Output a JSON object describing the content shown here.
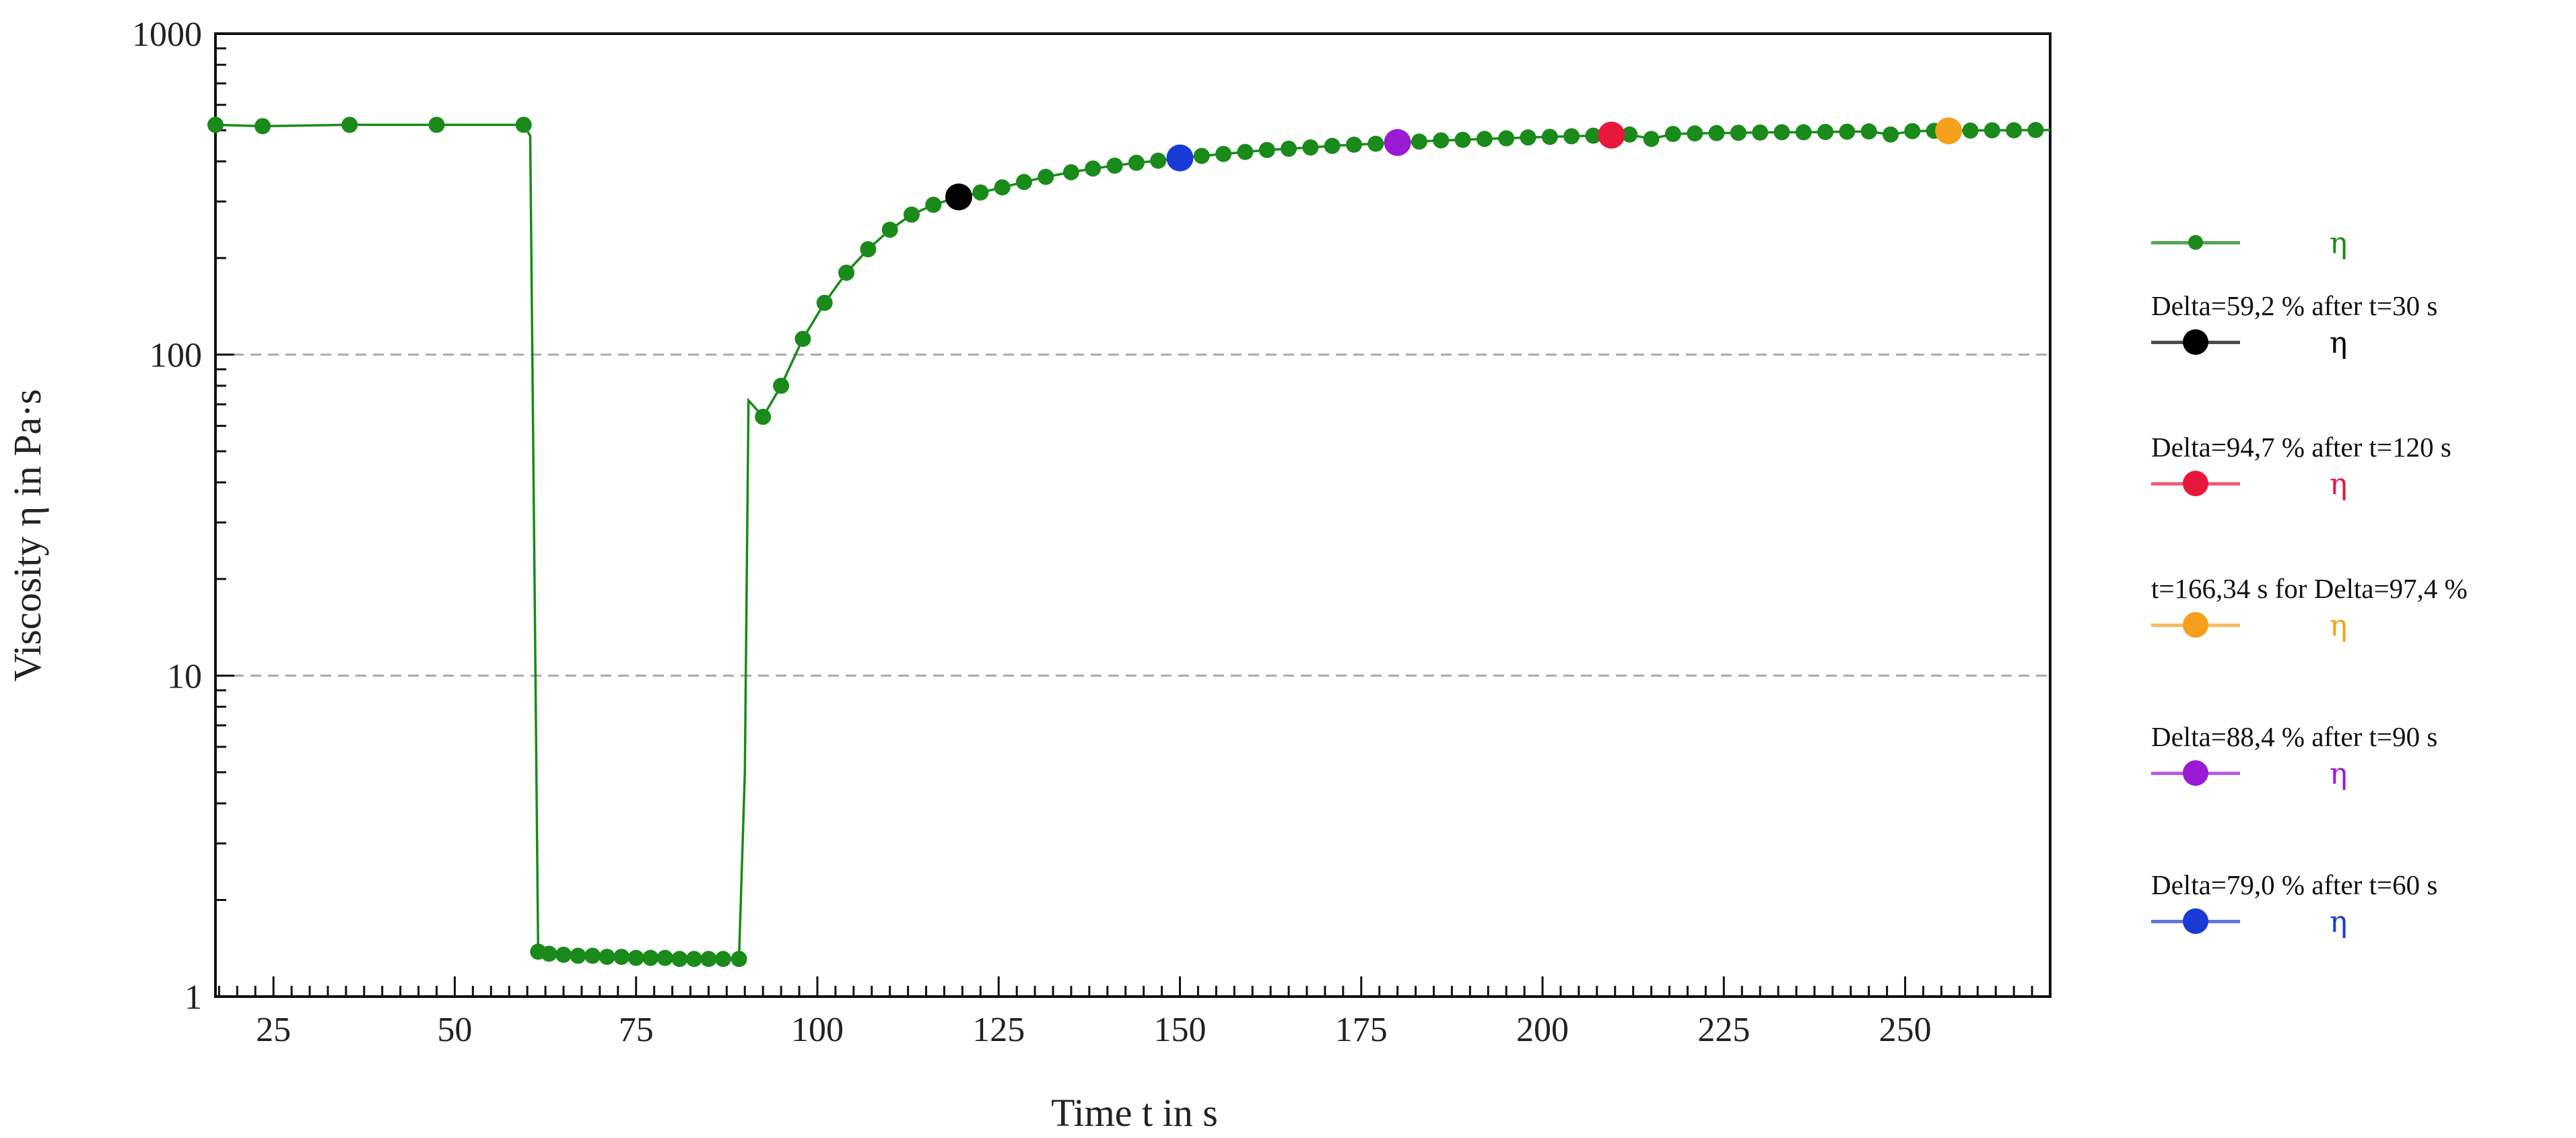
{
  "chart_data": {
    "type": "line",
    "xlabel": "Time t  in s",
    "ylabel": "Viscosity η  in Pa·s",
    "xlim": [
      17,
      270
    ],
    "ylim": [
      1,
      1000
    ],
    "y_scale": "log",
    "x_ticks": [
      25,
      50,
      75,
      100,
      125,
      150,
      175,
      200,
      225,
      250
    ],
    "y_ticks": [
      1,
      10,
      100,
      1000
    ],
    "y_tick_labels": [
      "1",
      "10",
      "100",
      "1000"
    ],
    "grid": "horizontal dashed at 10 and 100",
    "legend_position": "right",
    "series": [
      {
        "name": "η",
        "color": "#1a8a1a",
        "line_points": [
          [
            17,
            520
          ],
          [
            23.5,
            515
          ],
          [
            35.5,
            520
          ],
          [
            47.5,
            520
          ],
          [
            59.5,
            520
          ],
          [
            60.4,
            480
          ],
          [
            61.5,
            1.38
          ],
          [
            63,
            1.36
          ],
          [
            65,
            1.35
          ],
          [
            67,
            1.34
          ],
          [
            69,
            1.34
          ],
          [
            71,
            1.33
          ],
          [
            73,
            1.33
          ],
          [
            75,
            1.32
          ],
          [
            77,
            1.32
          ],
          [
            79,
            1.32
          ],
          [
            81,
            1.31
          ],
          [
            83,
            1.31
          ],
          [
            85,
            1.31
          ],
          [
            87,
            1.31
          ],
          [
            89.2,
            1.31
          ],
          [
            90,
            5
          ],
          [
            90.5,
            72
          ],
          [
            91.5,
            68
          ],
          [
            92.5,
            64
          ],
          [
            95,
            80
          ],
          [
            98,
            112
          ],
          [
            101,
            145
          ],
          [
            104,
            180
          ],
          [
            107,
            213
          ],
          [
            110,
            245
          ],
          [
            113,
            273
          ],
          [
            116,
            293
          ],
          [
            119.5,
            310
          ],
          [
            122.5,
            320
          ],
          [
            125.5,
            332
          ],
          [
            128.5,
            345
          ],
          [
            131.5,
            358
          ],
          [
            135,
            370
          ],
          [
            138,
            380
          ],
          [
            141,
            388
          ],
          [
            144,
            396
          ],
          [
            147,
            402
          ],
          [
            150,
            410
          ],
          [
            153,
            416
          ],
          [
            156,
            422
          ],
          [
            159,
            428
          ],
          [
            162,
            434
          ],
          [
            165,
            438
          ],
          [
            168,
            442
          ],
          [
            171,
            447
          ],
          [
            174,
            451
          ],
          [
            177,
            454
          ],
          [
            180,
            458
          ],
          [
            183,
            461
          ],
          [
            186,
            465
          ],
          [
            189,
            467
          ],
          [
            192,
            470
          ],
          [
            195,
            472
          ],
          [
            198,
            475
          ],
          [
            201,
            477
          ],
          [
            204,
            479
          ],
          [
            207,
            481
          ],
          [
            209.5,
            483
          ],
          [
            212,
            485
          ],
          [
            215,
            470
          ],
          [
            218,
            487
          ],
          [
            221,
            489
          ],
          [
            224,
            490
          ],
          [
            227,
            491
          ],
          [
            230,
            492
          ],
          [
            233,
            493
          ],
          [
            236,
            493
          ],
          [
            239,
            494
          ],
          [
            242,
            495
          ],
          [
            245,
            496
          ],
          [
            248,
            485
          ],
          [
            251,
            497
          ],
          [
            254,
            498
          ],
          [
            256,
            498
          ],
          [
            259,
            499
          ],
          [
            262,
            500
          ],
          [
            265,
            500
          ],
          [
            268,
            501
          ],
          [
            270,
            501
          ]
        ],
        "markers": [
          [
            17,
            520
          ],
          [
            23.5,
            515
          ],
          [
            35.5,
            520
          ],
          [
            47.5,
            520
          ],
          [
            59.5,
            520
          ],
          [
            61.5,
            1.38
          ],
          [
            63,
            1.36
          ],
          [
            65,
            1.35
          ],
          [
            67,
            1.34
          ],
          [
            69,
            1.34
          ],
          [
            71,
            1.33
          ],
          [
            73,
            1.33
          ],
          [
            75,
            1.32
          ],
          [
            77,
            1.32
          ],
          [
            79,
            1.32
          ],
          [
            81,
            1.31
          ],
          [
            83,
            1.31
          ],
          [
            85,
            1.31
          ],
          [
            87,
            1.31
          ],
          [
            89.2,
            1.31
          ],
          [
            92.5,
            64
          ],
          [
            95,
            80
          ],
          [
            98,
            112
          ],
          [
            101,
            145
          ],
          [
            104,
            180
          ],
          [
            107,
            213
          ],
          [
            110,
            245
          ],
          [
            113,
            273
          ],
          [
            116,
            293
          ],
          [
            119.5,
            310
          ],
          [
            122.5,
            320
          ],
          [
            125.5,
            332
          ],
          [
            128.5,
            345
          ],
          [
            131.5,
            358
          ],
          [
            135,
            370
          ],
          [
            138,
            380
          ],
          [
            141,
            388
          ],
          [
            144,
            396
          ],
          [
            147,
            402
          ],
          [
            150,
            410
          ],
          [
            153,
            416
          ],
          [
            156,
            422
          ],
          [
            159,
            428
          ],
          [
            162,
            434
          ],
          [
            165,
            438
          ],
          [
            168,
            442
          ],
          [
            171,
            447
          ],
          [
            174,
            451
          ],
          [
            177,
            454
          ],
          [
            180,
            458
          ],
          [
            183,
            461
          ],
          [
            186,
            465
          ],
          [
            189,
            467
          ],
          [
            192,
            470
          ],
          [
            195,
            472
          ],
          [
            198,
            475
          ],
          [
            201,
            477
          ],
          [
            204,
            479
          ],
          [
            207,
            481
          ],
          [
            209.5,
            483
          ],
          [
            212,
            485
          ],
          [
            215,
            470
          ],
          [
            218,
            487
          ],
          [
            221,
            489
          ],
          [
            224,
            490
          ],
          [
            227,
            491
          ],
          [
            230,
            492
          ],
          [
            233,
            493
          ],
          [
            236,
            493
          ],
          [
            239,
            494
          ],
          [
            242,
            495
          ],
          [
            245,
            496
          ],
          [
            248,
            485
          ],
          [
            251,
            497
          ],
          [
            254,
            498
          ],
          [
            256,
            498
          ],
          [
            259,
            499
          ],
          [
            262,
            500
          ],
          [
            265,
            500
          ],
          [
            268,
            501
          ]
        ]
      },
      {
        "name": "η",
        "color": "#000000",
        "legend_label": "Delta=59,2 % after t=30 s",
        "point": [
          119.5,
          310
        ]
      },
      {
        "name": "η",
        "color": "#e8183c",
        "legend_label": "Delta=94,7 % after t=120 s",
        "point": [
          209.5,
          483
        ]
      },
      {
        "name": "η",
        "color": "#f5a01a",
        "legend_label": "t=166,34 s for Delta=97,4 %",
        "point": [
          256,
          498
        ]
      },
      {
        "name": "η",
        "color": "#9a1ad6",
        "legend_label": "Delta=88,4 % after t=90 s",
        "point": [
          180,
          458
        ]
      },
      {
        "name": "η",
        "color": "#1a3ad6",
        "legend_label": "Delta=79,0 % after t=60 s",
        "point": [
          150,
          410
        ]
      }
    ]
  }
}
